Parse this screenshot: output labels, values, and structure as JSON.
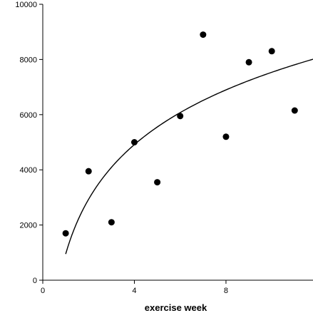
{
  "chart_data": {
    "type": "scatter",
    "title": "",
    "xlabel": "exercise week",
    "ylabel": "",
    "xlim": [
      0,
      11.8
    ],
    "ylim": [
      0,
      10000
    ],
    "x_ticks": [
      0,
      4,
      8
    ],
    "y_ticks": [
      0,
      2000,
      4000,
      6000,
      8000,
      10000
    ],
    "x_tick_labels": [
      "0",
      "4",
      "8"
    ],
    "y_tick_labels": [
      "0",
      "2000",
      "4000",
      "6000",
      "8000",
      "10000"
    ],
    "grid": false,
    "legend": "none",
    "series": [
      {
        "type": "scatter",
        "x": [
          1,
          2,
          3,
          4,
          5,
          6,
          7,
          8,
          9,
          10,
          11
        ],
        "y": [
          1700,
          3950,
          2100,
          5000,
          3550,
          5950,
          8900,
          5200,
          7900,
          8300,
          6150
        ]
      },
      {
        "type": "line",
        "fit": "logarithmic",
        "a": 950,
        "b": 2860,
        "x_range": [
          1,
          11.8
        ]
      }
    ],
    "colors": {
      "marker": "#000000",
      "line": "#000000",
      "axis": "#000000"
    }
  }
}
